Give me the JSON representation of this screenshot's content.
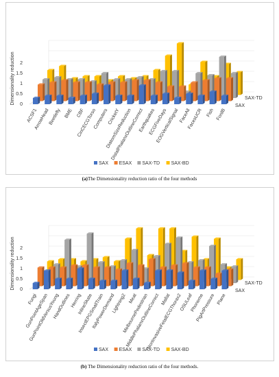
{
  "colors": {
    "SAX": "#4472c4",
    "ESAX": "#ed7d31",
    "SAX-TD": "#a5a5a5",
    "SAX-BD": "#ffc000"
  },
  "charts": [
    {
      "id": "a",
      "caption_label": "(a)",
      "caption_text": "The Dimensionality reduction ratio of the four methods",
      "chart_data": {
        "type": "bar",
        "ylabel": "Dimensionality reduction",
        "ylim": [
          0,
          2.5
        ],
        "yticks": [
          "0",
          "0.5",
          "1",
          "1.5",
          "2"
        ],
        "legend_position": "bottom",
        "depth_labels": [
          "SAX-TD",
          "SAX"
        ],
        "categories": [
          "ACSF1",
          "ArrowHead",
          "Beetlefly",
          "BME",
          "CBF",
          "CinCECGTorso",
          "Computers",
          "CricketY",
          "DiatomSizeReduction",
          "DistalPhalanxOutlineCorrect",
          "Earthquakes",
          "ECGFiveDays",
          "EOGVerticalSignal",
          "FaceAll",
          "FacesUCR",
          "Fish",
          "FordB"
        ],
        "series": [
          {
            "name": "SAX",
            "values": [
              0.3,
              0.4,
              0.4,
              0.3,
              0.4,
              0.5,
              0.9,
              0.4,
              0.4,
              0.9,
              0.4,
              0.5,
              0.3,
              0.5,
              0.4,
              0.6,
              0.4
            ]
          },
          {
            "name": "ESAX",
            "values": [
              0.8,
              0.9,
              1.0,
              0.9,
              0.9,
              0.8,
              0.9,
              0.9,
              1.0,
              1.0,
              0.9,
              0.7,
              0.7,
              0.9,
              1.0,
              1.1,
              1.1
            ]
          },
          {
            "name": "SAX-TD",
            "values": [
              0.9,
              1.0,
              0.9,
              0.9,
              0.8,
              1.2,
              0.9,
              0.9,
              1.0,
              0.9,
              1.3,
              1.3,
              0.3,
              1.2,
              1.1,
              2.0,
              1.2
            ]
          },
          {
            "name": "SAX-BD",
            "values": [
              1.2,
              1.4,
              0.8,
              0.9,
              0.9,
              0.7,
              0.9,
              0.8,
              0.9,
              1.2,
              1.9,
              2.5,
              0.5,
              1.6,
              0.9,
              1.5,
              1.1
            ]
          }
        ]
      }
    },
    {
      "id": "b",
      "caption_label": "(b)",
      "caption_text": "The Dimensionality reduction ratio of the four methods.",
      "chart_data": {
        "type": "bar",
        "ylabel": "Dimensionality reduction",
        "ylim": [
          0,
          2.5
        ],
        "yticks": [
          "0",
          "0.5",
          "1",
          "1.5",
          "2"
        ],
        "legend_position": "bottom",
        "depth_labels": [
          "SAX-TD",
          "SAX"
        ],
        "categories": [
          "Fungi",
          "GunPointAgeSpan",
          "GunPointOldVersusYoung",
          "HandOutlines",
          "Herring",
          "InlineSkate",
          "InsectEPGSmallTrain",
          "ItalyPowerDemand",
          "Lightning2",
          "Meat",
          "MelbournePedestrian",
          "MiddlePhalanxOutlineCorrect",
          "Mallat",
          "NonInvasiveFetalECGThorax2",
          "OSULeaf",
          "Phoneme",
          "PigArtPressure",
          "Plane"
        ],
        "series": [
          {
            "name": "SAX",
            "values": [
              0.3,
              0.9,
              0.5,
              0.5,
              1.0,
              0.5,
              0.4,
              0.4,
              0.9,
              0.5,
              0.3,
              0.9,
              0.9,
              0.8,
              0.4,
              0.9,
              0.5,
              0.9
            ]
          },
          {
            "name": "ESAX",
            "values": [
              0.9,
              0.9,
              0.9,
              1.0,
              1.0,
              0.9,
              0.9,
              0.8,
              1.1,
              1.0,
              1.3,
              0.9,
              1.0,
              1.1,
              0.9,
              0.9,
              0.6,
              0.8
            ]
          },
          {
            "name": "SAX-TD",
            "values": [
              0.5,
              0.9,
              2.1,
              0.8,
              2.4,
              1.0,
              0.8,
              1.1,
              1.6,
              0.7,
              1.3,
              1.9,
              2.2,
              1.0,
              1.1,
              1.8,
              0.9,
              0.8
            ]
          },
          {
            "name": "SAX-BD",
            "values": [
              0.9,
              1.0,
              1.0,
              0.9,
              1.0,
              1.1,
              0.9,
              2.0,
              2.5,
              1.2,
              2.5,
              2.5,
              1.4,
              2.1,
              1.0,
              2.0,
              0.6,
              1.0
            ]
          }
        ]
      }
    }
  ]
}
